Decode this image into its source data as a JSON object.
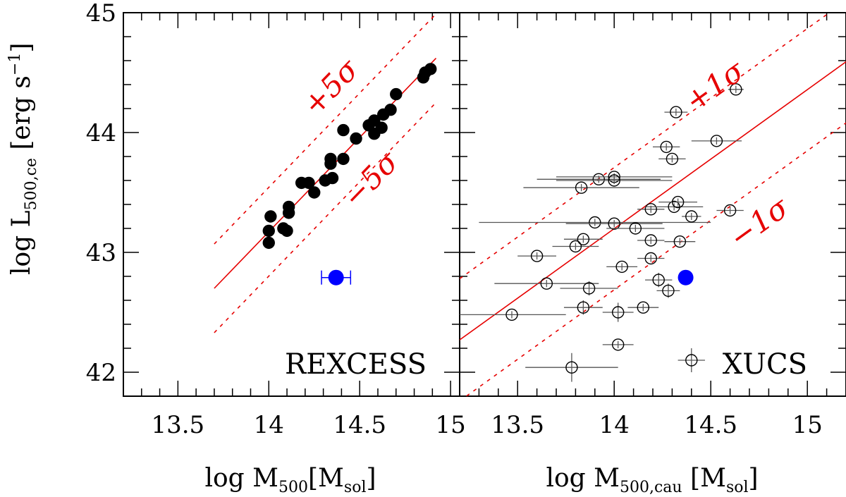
{
  "figure": {
    "y_axis_label": "log L",
    "y_axis_sub": "500,ce",
    "y_axis_units": " [erg s",
    "y_axis_exp": "−1",
    "y_axis_close": "]"
  },
  "chart_data": [
    {
      "type": "scatter",
      "panel": "left",
      "label": "REXCESS",
      "xlabel": "log M",
      "xlabel_sub": "500",
      "xlabel_units": "[M",
      "xlabel_units_sub": "sol",
      "xlabel_units_close": "]",
      "xlim": [
        13.2,
        15.05
      ],
      "ylim": [
        41.8,
        45.0
      ],
      "xticks": [
        13.5,
        14.0,
        14.5,
        15.0
      ],
      "xtick_labels": [
        "13.5",
        "14",
        "14.5",
        "15"
      ],
      "yticks": [
        42,
        43,
        44,
        45
      ],
      "ytick_labels": [
        "42",
        "43",
        "44",
        "45"
      ],
      "fit_line": {
        "x": [
          13.7,
          14.92
        ],
        "y": [
          42.7,
          44.62
        ]
      },
      "band_lines": [
        {
          "dx": 0,
          "dy": 0.37,
          "x": [
            13.7,
            14.92
          ]
        },
        {
          "dx": 0,
          "dy": -0.37,
          "x": [
            13.7,
            14.92
          ]
        }
      ],
      "band_labels": [
        {
          "text": "+5σ",
          "x": 14.38,
          "y": 44.32
        },
        {
          "text": "−5σ",
          "x": 14.6,
          "y": 43.55
        }
      ],
      "points": [
        {
          "x": 14.0,
          "y": 43.08,
          "xerr": 0.015,
          "yerr": 0.02
        },
        {
          "x": 14.0,
          "y": 43.18,
          "xerr": 0.015,
          "yerr": 0.02
        },
        {
          "x": 14.01,
          "y": 43.3,
          "xerr": 0.015,
          "yerr": 0.02
        },
        {
          "x": 14.08,
          "y": 43.2,
          "xerr": 0.015,
          "yerr": 0.02
        },
        {
          "x": 14.1,
          "y": 43.18,
          "xerr": 0.015,
          "yerr": 0.02
        },
        {
          "x": 14.11,
          "y": 43.33,
          "xerr": 0.015,
          "yerr": 0.02
        },
        {
          "x": 14.11,
          "y": 43.38,
          "xerr": 0.015,
          "yerr": 0.02
        },
        {
          "x": 14.18,
          "y": 43.58,
          "xerr": 0.015,
          "yerr": 0.02
        },
        {
          "x": 14.22,
          "y": 43.58,
          "xerr": 0.015,
          "yerr": 0.02
        },
        {
          "x": 14.25,
          "y": 43.5,
          "xerr": 0.015,
          "yerr": 0.02
        },
        {
          "x": 14.31,
          "y": 43.6,
          "xerr": 0.015,
          "yerr": 0.02
        },
        {
          "x": 14.35,
          "y": 43.62,
          "xerr": 0.015,
          "yerr": 0.02
        },
        {
          "x": 14.34,
          "y": 43.74,
          "xerr": 0.015,
          "yerr": 0.02
        },
        {
          "x": 14.34,
          "y": 43.78,
          "xerr": 0.015,
          "yerr": 0.02
        },
        {
          "x": 14.41,
          "y": 43.78,
          "xerr": 0.015,
          "yerr": 0.02
        },
        {
          "x": 14.41,
          "y": 44.02,
          "xerr": 0.015,
          "yerr": 0.02
        },
        {
          "x": 14.48,
          "y": 43.95,
          "xerr": 0.015,
          "yerr": 0.02
        },
        {
          "x": 14.55,
          "y": 44.06,
          "xerr": 0.015,
          "yerr": 0.02
        },
        {
          "x": 14.58,
          "y": 44.1,
          "xerr": 0.015,
          "yerr": 0.02
        },
        {
          "x": 14.58,
          "y": 43.99,
          "xerr": 0.015,
          "yerr": 0.02
        },
        {
          "x": 14.62,
          "y": 44.04,
          "xerr": 0.015,
          "yerr": 0.02
        },
        {
          "x": 14.63,
          "y": 44.15,
          "xerr": 0.015,
          "yerr": 0.02
        },
        {
          "x": 14.67,
          "y": 44.19,
          "xerr": 0.015,
          "yerr": 0.02
        },
        {
          "x": 14.7,
          "y": 44.32,
          "xerr": 0.015,
          "yerr": 0.02
        },
        {
          "x": 14.85,
          "y": 44.46,
          "xerr": 0.015,
          "yerr": 0.02
        },
        {
          "x": 14.86,
          "y": 44.5,
          "xerr": 0.015,
          "yerr": 0.02
        },
        {
          "x": 14.89,
          "y": 44.53,
          "xerr": 0.015,
          "yerr": 0.02
        }
      ],
      "highlight": {
        "x": 14.37,
        "y": 42.79,
        "xerr": 0.08,
        "yerr": 0.04,
        "color": "#0000ff"
      },
      "line_color": "#e60000"
    },
    {
      "type": "scatter",
      "panel": "right",
      "label": "XUCS",
      "xlabel": "log M",
      "xlabel_sub": "500,cau",
      "xlabel_units": " [M",
      "xlabel_units_sub": "sol",
      "xlabel_units_close": "]",
      "xlim": [
        13.2,
        15.2
      ],
      "ylim": [
        41.8,
        45.0
      ],
      "xticks": [
        13.5,
        14.0,
        14.5,
        15.0
      ],
      "xtick_labels": [
        "13.5",
        "14",
        "14.5",
        "15"
      ],
      "yticks": [
        42,
        43,
        44,
        45
      ],
      "ytick_labels": [
        "42",
        "43",
        "44",
        "45"
      ],
      "fit_line": {
        "x": [
          13.2,
          15.2
        ],
        "y": [
          42.27,
          44.59
        ]
      },
      "band_lines": [
        {
          "dy": 0.51,
          "x": [
            13.2,
            15.2
          ]
        },
        {
          "dy": -0.51,
          "x": [
            13.2,
            15.2
          ]
        }
      ],
      "band_labels": [
        {
          "text": "+1σ",
          "x": 14.55,
          "y": 44.32
        },
        {
          "text": "−1σ",
          "x": 14.78,
          "y": 43.18
        }
      ],
      "points": [
        {
          "x": 13.47,
          "y": 42.48,
          "xerr": 0.28,
          "yerr": 0.03
        },
        {
          "x": 13.6,
          "y": 42.97,
          "xerr": 0.1,
          "yerr": 0.03
        },
        {
          "x": 13.65,
          "y": 42.74,
          "xerr": 0.27,
          "yerr": 0.03
        },
        {
          "x": 13.78,
          "y": 42.04,
          "xerr": 0.24,
          "yerr": 0.12
        },
        {
          "x": 13.8,
          "y": 43.05,
          "xerr": 0.12,
          "yerr": 0.03
        },
        {
          "x": 13.83,
          "y": 43.54,
          "xerr": 0.3,
          "yerr": 0.03
        },
        {
          "x": 13.84,
          "y": 42.54,
          "xerr": 0.1,
          "yerr": 0.06
        },
        {
          "x": 13.84,
          "y": 43.11,
          "xerr": 0.1,
          "yerr": 0.03
        },
        {
          "x": 13.87,
          "y": 42.7,
          "xerr": 0.15,
          "yerr": 0.06
        },
        {
          "x": 13.9,
          "y": 43.25,
          "xerr": 0.6,
          "yerr": 0.03
        },
        {
          "x": 13.92,
          "y": 43.61,
          "xerr": 0.32,
          "yerr": 0.03
        },
        {
          "x": 14.0,
          "y": 43.63,
          "xerr": 0.3,
          "yerr": 0.03
        },
        {
          "x": 14.0,
          "y": 43.6,
          "xerr": 0.3,
          "yerr": 0.03
        },
        {
          "x": 14.0,
          "y": 43.24,
          "xerr": 0.25,
          "yerr": 0.03
        },
        {
          "x": 14.02,
          "y": 42.5,
          "xerr": 0.08,
          "yerr": 0.08
        },
        {
          "x": 14.02,
          "y": 42.23,
          "xerr": 0.08,
          "yerr": 0.03
        },
        {
          "x": 14.04,
          "y": 42.88,
          "xerr": 0.08,
          "yerr": 0.03
        },
        {
          "x": 14.11,
          "y": 43.2,
          "xerr": 0.15,
          "yerr": 0.03
        },
        {
          "x": 14.15,
          "y": 42.54,
          "xerr": 0.08,
          "yerr": 0.03
        },
        {
          "x": 14.19,
          "y": 43.36,
          "xerr": 0.07,
          "yerr": 0.03
        },
        {
          "x": 14.19,
          "y": 42.95,
          "xerr": 0.07,
          "yerr": 0.03
        },
        {
          "x": 14.19,
          "y": 43.1,
          "xerr": 0.07,
          "yerr": 0.03
        },
        {
          "x": 14.23,
          "y": 42.77,
          "xerr": 0.07,
          "yerr": 0.06
        },
        {
          "x": 14.27,
          "y": 43.88,
          "xerr": 0.07,
          "yerr": 0.03
        },
        {
          "x": 14.28,
          "y": 42.68,
          "xerr": 0.06,
          "yerr": 0.06
        },
        {
          "x": 14.3,
          "y": 43.78,
          "xerr": 0.07,
          "yerr": 0.03
        },
        {
          "x": 14.31,
          "y": 43.38,
          "xerr": 0.15,
          "yerr": 0.03
        },
        {
          "x": 14.32,
          "y": 44.17,
          "xerr": 0.06,
          "yerr": 0.03
        },
        {
          "x": 14.33,
          "y": 43.42,
          "xerr": 0.1,
          "yerr": 0.03
        },
        {
          "x": 14.34,
          "y": 43.09,
          "xerr": 0.08,
          "yerr": 0.03
        },
        {
          "x": 14.4,
          "y": 43.3,
          "xerr": 0.05,
          "yerr": 0.03
        },
        {
          "x": 14.4,
          "y": 42.1,
          "xerr": 0.07,
          "yerr": 0.1
        },
        {
          "x": 14.53,
          "y": 43.93,
          "xerr": 0.13,
          "yerr": 0.03
        },
        {
          "x": 14.6,
          "y": 43.35,
          "xerr": 0.07,
          "yerr": 0.03
        },
        {
          "x": 14.63,
          "y": 44.36,
          "xerr": 0.04,
          "yerr": 0.03
        }
      ],
      "highlight": {
        "x": 14.37,
        "y": 42.79,
        "xerr": 0.0,
        "yerr": 0.0,
        "color": "#0000ff"
      },
      "line_color": "#e60000"
    }
  ]
}
